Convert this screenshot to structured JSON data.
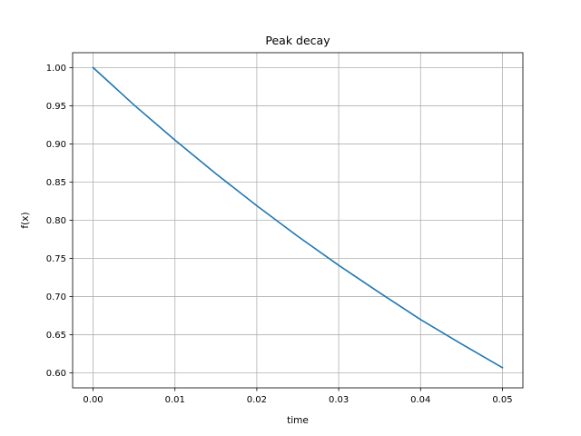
{
  "chart_data": {
    "type": "line",
    "title": "Peak decay",
    "xlabel": "time",
    "ylabel": "f(x)",
    "xlim": [
      -0.0025,
      0.0525
    ],
    "ylim": [
      0.5805,
      1.0195
    ],
    "xticks": [
      0.0,
      0.01,
      0.02,
      0.03,
      0.04,
      0.05
    ],
    "xtick_labels": [
      "0.00",
      "0.01",
      "0.02",
      "0.03",
      "0.04",
      "0.05"
    ],
    "yticks": [
      0.6,
      0.65,
      0.7,
      0.75,
      0.8,
      0.85,
      0.9,
      0.95,
      1.0
    ],
    "ytick_labels": [
      "0.60",
      "0.65",
      "0.70",
      "0.75",
      "0.80",
      "0.85",
      "0.90",
      "0.95",
      "1.00"
    ],
    "grid": true,
    "series": [
      {
        "color": "#1f77b4",
        "x": [
          0.0,
          0.005,
          0.01,
          0.015,
          0.02,
          0.025,
          0.03,
          0.035,
          0.04,
          0.045,
          0.05
        ],
        "y": [
          1.0,
          0.951,
          0.905,
          0.861,
          0.819,
          0.779,
          0.741,
          0.705,
          0.67,
          0.638,
          0.607
        ]
      }
    ]
  }
}
